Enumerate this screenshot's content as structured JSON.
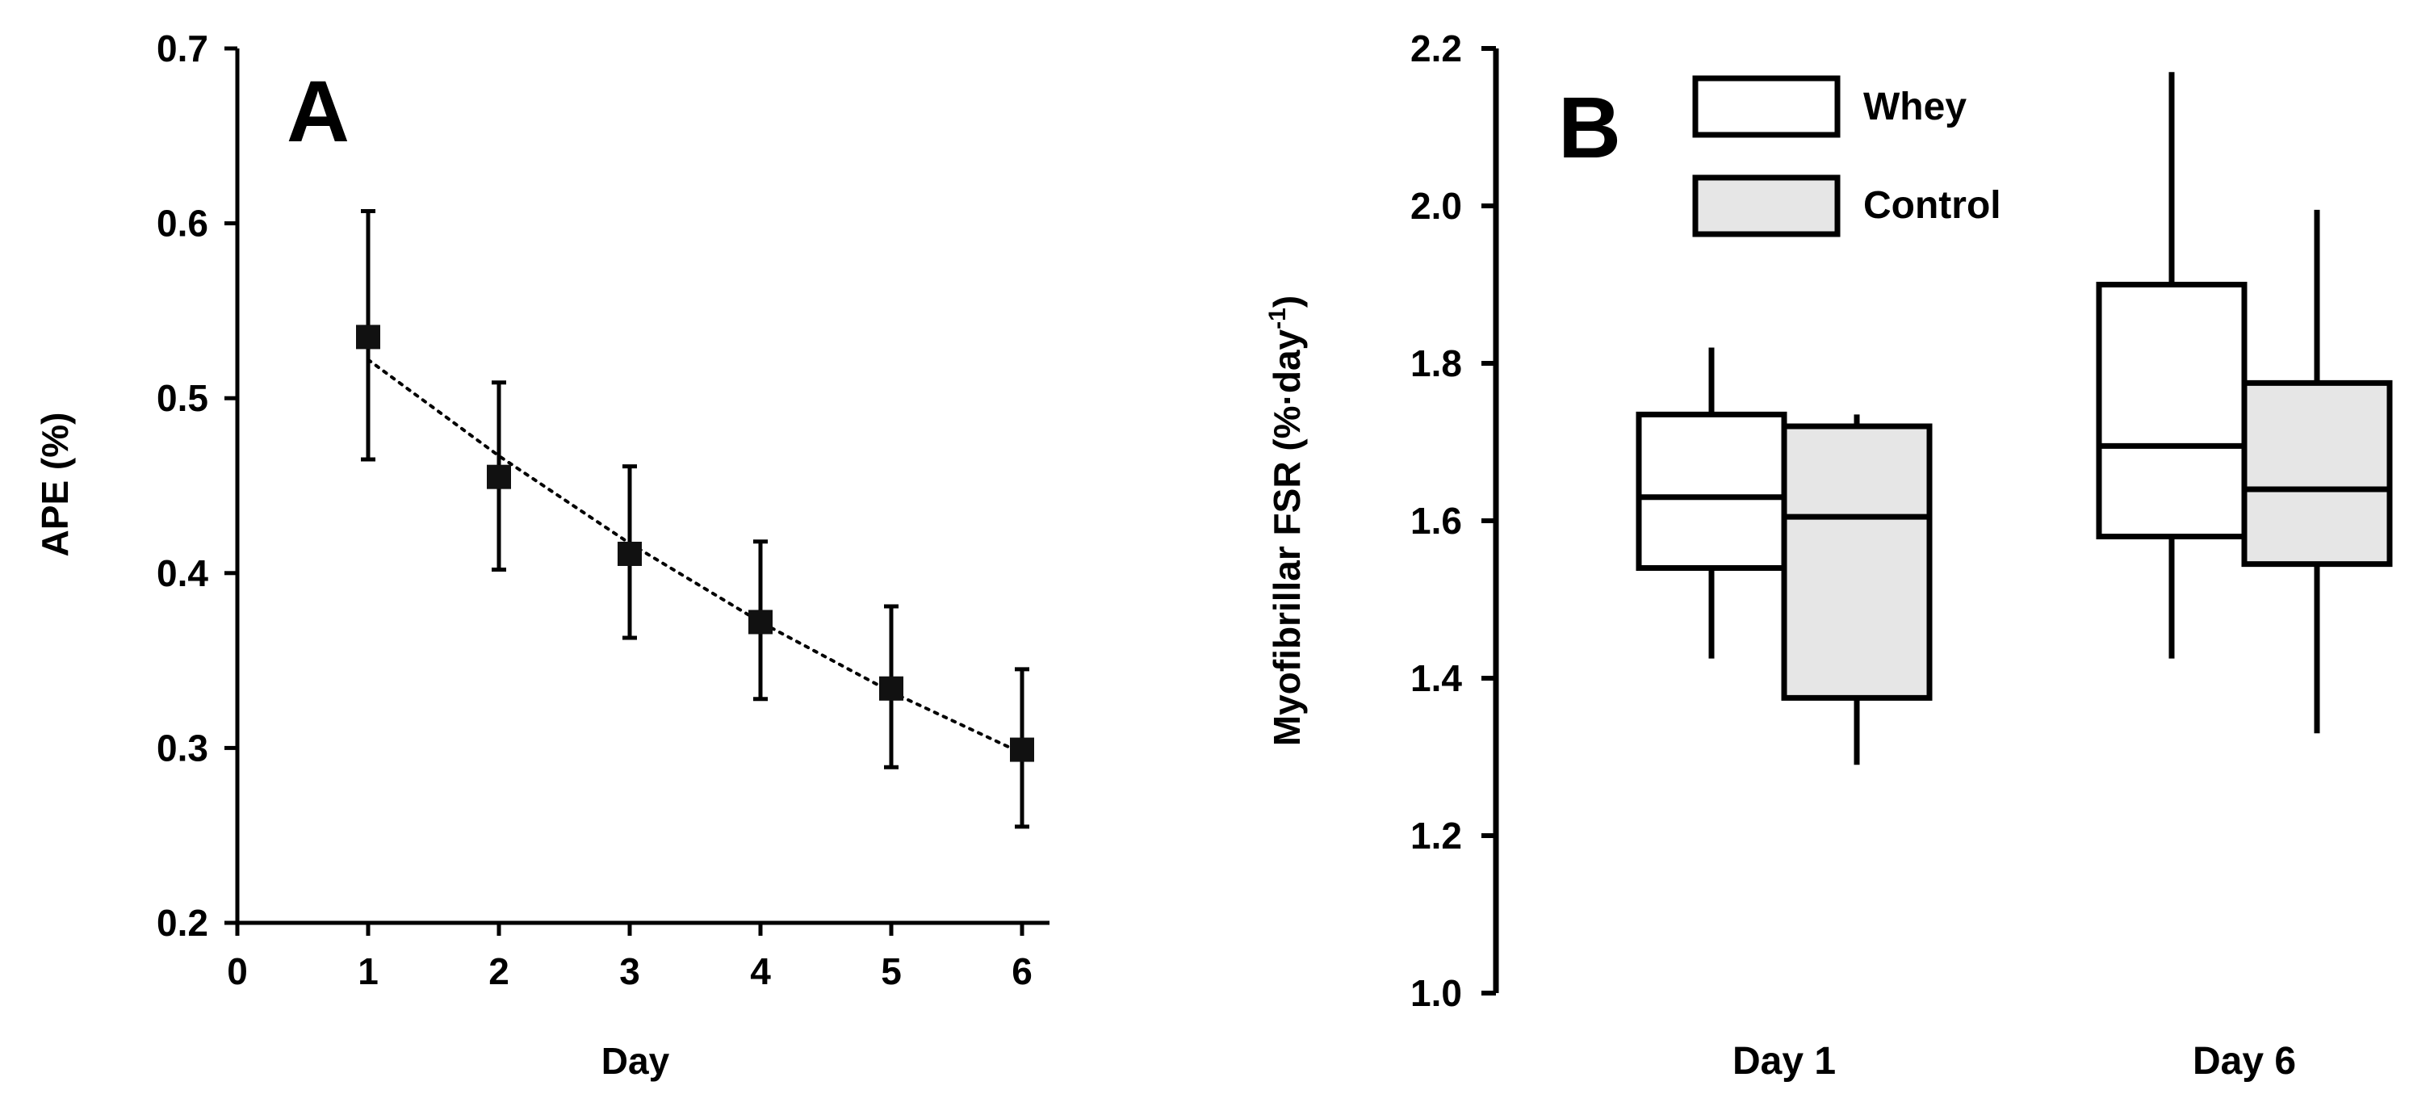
{
  "colors": {
    "axis": "#000000",
    "marker": "#111111",
    "whey_fill": "#ffffff",
    "control_fill": "#e6e6e6"
  },
  "chart_data": [
    {
      "type": "scatter",
      "panel_label": "A",
      "title": "",
      "xlabel": "Day",
      "ylabel": "APE (%)",
      "xlim": [
        0,
        6.4
      ],
      "ylim": [
        0.2,
        0.7
      ],
      "xticks": [
        0,
        1,
        2,
        3,
        4,
        5,
        6
      ],
      "yticks": [
        0.2,
        0.3,
        0.4,
        0.5,
        0.6,
        0.7
      ],
      "xtick_labels": [
        "0",
        "1",
        "2",
        "3",
        "4",
        "5",
        "6"
      ],
      "ytick_labels": [
        "0.2",
        "0.3",
        "0.4",
        "0.5",
        "0.6",
        "0.7"
      ],
      "points": [
        {
          "x": 1,
          "y": 0.535,
          "err_low": 0.465,
          "err_high": 0.607
        },
        {
          "x": 2,
          "y": 0.455,
          "err_low": 0.402,
          "err_high": 0.509
        },
        {
          "x": 3,
          "y": 0.411,
          "err_low": 0.363,
          "err_high": 0.461
        },
        {
          "x": 4,
          "y": 0.372,
          "err_low": 0.328,
          "err_high": 0.418
        },
        {
          "x": 5,
          "y": 0.334,
          "err_low": 0.289,
          "err_high": 0.381
        },
        {
          "x": 6,
          "y": 0.299,
          "err_low": 0.255,
          "err_high": 0.345
        }
      ],
      "trendline": {
        "style": "dotted",
        "x": [
          1,
          2,
          3,
          4,
          5,
          6
        ],
        "y": [
          0.522,
          0.467,
          0.417,
          0.372,
          0.332,
          0.297
        ]
      }
    },
    {
      "type": "box",
      "panel_label": "B",
      "title": "",
      "xlabel": "",
      "ylabel": "Myofibrillar FSR (%·day",
      "ylabel_superscript": "-1",
      "ylabel_suffix": ")",
      "ylim": [
        1.0,
        2.2
      ],
      "yticks": [
        1.0,
        1.2,
        1.4,
        1.6,
        1.8,
        2.0,
        2.2
      ],
      "ytick_labels": [
        "1.0",
        "1.2",
        "1.4",
        "1.6",
        "1.8",
        "2.0",
        "2.2"
      ],
      "categories": [
        "Day 1",
        "Day 6"
      ],
      "legend": {
        "position": "top-left",
        "entries": [
          "Whey",
          "Control"
        ]
      },
      "series": [
        {
          "name": "Whey",
          "boxes": [
            {
              "category": "Day 1",
              "whisker_low": 1.425,
              "q1": 1.54,
              "median": 1.63,
              "q3": 1.735,
              "whisker_high": 1.82
            },
            {
              "category": "Day 6",
              "whisker_low": 1.425,
              "q1": 1.58,
              "median": 1.695,
              "q3": 1.9,
              "whisker_high": 2.17
            }
          ]
        },
        {
          "name": "Control",
          "boxes": [
            {
              "category": "Day 1",
              "whisker_low": 1.29,
              "q1": 1.375,
              "median": 1.605,
              "q3": 1.72,
              "whisker_high": 1.735
            },
            {
              "category": "Day 6",
              "whisker_low": 1.33,
              "q1": 1.545,
              "median": 1.64,
              "q3": 1.775,
              "whisker_high": 1.995
            }
          ]
        }
      ]
    }
  ]
}
